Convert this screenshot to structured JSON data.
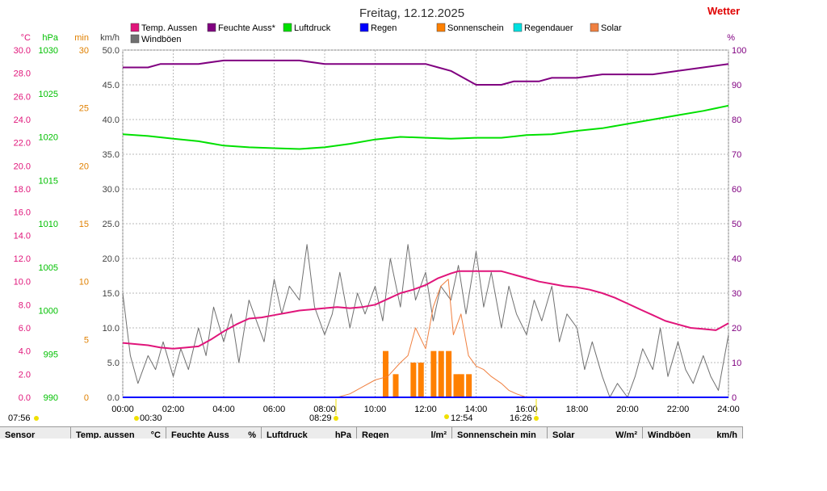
{
  "header": {
    "title": "Freitag, 12.12.2025",
    "brand": "Wetter"
  },
  "legend": [
    {
      "label": "Temp. Aussen",
      "color": "#e0157a"
    },
    {
      "label": "Feuchte Auss*",
      "color": "#800080"
    },
    {
      "label": "Luftdruck",
      "color": "#00e000"
    },
    {
      "label": "Regen",
      "color": "#0000ff"
    },
    {
      "label": "Sonnenschein",
      "color": "#ff8000"
    },
    {
      "label": "Regendauer",
      "color": "#00e0e0"
    },
    {
      "label": "Solar",
      "color": "#f08040"
    },
    {
      "label": "Windböen",
      "color": "#707070"
    }
  ],
  "axes": {
    "temp": {
      "unit": "°C",
      "color": "#e0157a",
      "min": 0,
      "max": 30,
      "ticks": [
        "30.0",
        "28.0",
        "26.0",
        "24.0",
        "22.0",
        "20.0",
        "18.0",
        "16.0",
        "14.0",
        "12.0",
        "10.0",
        "8.0",
        "6.0",
        "4.0",
        "2.0",
        "0.0"
      ]
    },
    "pressure": {
      "unit": "hPa",
      "color": "#00c000",
      "min": 990,
      "max": 1030,
      "ticks": [
        "1030",
        "1025",
        "1020",
        "1015",
        "1010",
        "1005",
        "1000",
        "995",
        "990"
      ]
    },
    "sunshine": {
      "unit": "min",
      "color": "#e08000",
      "min": 0,
      "max": 30,
      "ticks": [
        "30",
        "25",
        "20",
        "15",
        "10",
        "5",
        "0"
      ]
    },
    "wind": {
      "unit": "km/h",
      "color": "#404040",
      "min": 0,
      "max": 50,
      "ticks": [
        "50.0",
        "45.0",
        "40.0",
        "35.0",
        "30.0",
        "25.0",
        "20.0",
        "15.0",
        "10.0",
        "5.0",
        "0.0"
      ]
    },
    "humidity": {
      "unit": "%",
      "color": "#800080",
      "min": 0,
      "max": 100,
      "ticks": [
        "100",
        "90",
        "80",
        "70",
        "60",
        "50",
        "40",
        "30",
        "20",
        "10",
        "0"
      ]
    },
    "time": {
      "ticks": [
        "00:00",
        "02:00",
        "04:00",
        "06:00",
        "08:00",
        "10:00",
        "12:00",
        "14:00",
        "16:00",
        "18:00",
        "20:00",
        "22:00",
        "24:00"
      ]
    }
  },
  "markers": {
    "sunrise_prev": "07:56",
    "moonset": "00:30",
    "sunrise": "08:29",
    "noon": "12:54",
    "sunset": "16:26"
  },
  "footer": [
    {
      "label": "Sensor",
      "unit": ""
    },
    {
      "label": "Temp. aussen",
      "unit": "°C"
    },
    {
      "label": "Feuchte Auss",
      "unit": "%"
    },
    {
      "label": "Luftdruck",
      "unit": "hPa"
    },
    {
      "label": "Regen",
      "unit": "l/m²"
    },
    {
      "label": "Sonnenschein min",
      "unit": ""
    },
    {
      "label": "Solar",
      "unit": "W/m²"
    },
    {
      "label": "Windböen",
      "unit": "km/h"
    }
  ],
  "chart_data": {
    "type": "line",
    "title": "Freitag, 12.12.2025",
    "xlabel": "",
    "xlim": [
      0,
      24
    ],
    "grid": true,
    "legend_position": "top",
    "series": [
      {
        "name": "Temp. Aussen",
        "axis": "temp",
        "unit": "°C",
        "x": [
          0,
          1,
          1.5,
          2,
          2.5,
          3,
          3.5,
          4,
          4.5,
          5,
          5.5,
          6,
          6.5,
          7,
          7.5,
          8,
          8.5,
          9,
          9.5,
          10,
          10.5,
          11,
          11.5,
          12,
          12.5,
          13,
          13.3,
          13.7,
          14,
          14.5,
          15,
          15.5,
          16,
          16.5,
          17,
          17.5,
          18,
          18.5,
          19,
          19.5,
          20,
          20.5,
          21,
          21.5,
          22,
          22.5,
          23,
          23.5,
          24
        ],
        "y": [
          4.7,
          4.5,
          4.3,
          4.2,
          4.3,
          4.4,
          5.0,
          5.7,
          6.3,
          6.8,
          6.9,
          7.1,
          7.3,
          7.5,
          7.6,
          7.7,
          7.8,
          7.7,
          7.8,
          8.0,
          8.5,
          9.0,
          9.3,
          9.7,
          10.3,
          10.7,
          10.9,
          10.9,
          10.9,
          10.9,
          10.9,
          10.6,
          10.3,
          10.0,
          9.8,
          9.6,
          9.5,
          9.3,
          9.0,
          8.6,
          8.1,
          7.6,
          7.1,
          6.6,
          6.3,
          6.0,
          5.9,
          5.8,
          6.4
        ]
      },
      {
        "name": "Feuchte Auss*",
        "axis": "humidity",
        "unit": "%",
        "x": [
          0,
          1,
          1.5,
          2,
          3,
          4,
          5,
          6,
          7,
          8,
          9,
          10,
          11,
          11.5,
          12,
          12.5,
          13,
          13.5,
          14,
          14.5,
          15,
          15.5,
          16,
          16.5,
          17,
          18,
          19,
          20,
          21,
          22,
          23,
          24
        ],
        "y": [
          95,
          95,
          96,
          96,
          96,
          97,
          97,
          97,
          97,
          96,
          96,
          96,
          96,
          96,
          96,
          95,
          94,
          92,
          90,
          90,
          90,
          91,
          91,
          91,
          92,
          92,
          93,
          93,
          93,
          94,
          95,
          96
        ]
      },
      {
        "name": "Luftdruck",
        "axis": "pressure",
        "unit": "hPa",
        "x": [
          0,
          1,
          2,
          3,
          4,
          5,
          6,
          7,
          8,
          9,
          10,
          11,
          12,
          13,
          14,
          15,
          16,
          17,
          18,
          19,
          20,
          21,
          22,
          23,
          24
        ],
        "y": [
          1020.3,
          1020.1,
          1019.8,
          1019.5,
          1019.0,
          1018.8,
          1018.7,
          1018.6,
          1018.8,
          1019.2,
          1019.7,
          1020.0,
          1019.9,
          1019.8,
          1019.9,
          1019.9,
          1020.2,
          1020.3,
          1020.7,
          1021.0,
          1021.5,
          1022.0,
          1022.5,
          1023.0,
          1023.6
        ]
      },
      {
        "name": "Windböen",
        "axis": "wind",
        "unit": "km/h",
        "x": [
          0,
          0.3,
          0.6,
          1,
          1.3,
          1.6,
          2,
          2.3,
          2.6,
          3,
          3.3,
          3.6,
          4,
          4.3,
          4.6,
          5,
          5.3,
          5.6,
          6,
          6.3,
          6.6,
          7,
          7.3,
          7.6,
          8,
          8.3,
          8.6,
          9,
          9.3,
          9.6,
          10,
          10.3,
          10.6,
          11,
          11.3,
          11.6,
          12,
          12.3,
          12.6,
          13,
          13.3,
          13.6,
          14,
          14.3,
          14.6,
          15,
          15.3,
          15.6,
          16,
          16.3,
          16.6,
          17,
          17.3,
          17.6,
          18,
          18.3,
          18.6,
          19,
          19.3,
          19.6,
          20,
          20.3,
          20.6,
          21,
          21.3,
          21.6,
          22,
          22.3,
          22.6,
          23,
          23.3,
          23.6,
          24
        ],
        "y": [
          15,
          6,
          2,
          6,
          4,
          8,
          3,
          7,
          4,
          10,
          6,
          13,
          8,
          12,
          5,
          14,
          11,
          8,
          17,
          12,
          16,
          14,
          22,
          13,
          9,
          12,
          18,
          10,
          15,
          12,
          16,
          11,
          20,
          13,
          22,
          14,
          18,
          11,
          16,
          14,
          19,
          12,
          21,
          13,
          18,
          10,
          16,
          12,
          9,
          14,
          11,
          16,
          8,
          12,
          10,
          4,
          8,
          3,
          0,
          2,
          0,
          3,
          7,
          4,
          10,
          3,
          8,
          4,
          2,
          6,
          3,
          1,
          9
        ]
      },
      {
        "name": "Sonnenschein",
        "axis": "sunshine",
        "unit": "min",
        "type": "bar",
        "x": [
          10.4,
          10.8,
          11.5,
          11.8,
          12.3,
          12.6,
          12.9,
          13.2,
          13.4,
          13.7
        ],
        "y": [
          4,
          2,
          3,
          3,
          4,
          4,
          4,
          2,
          2,
          2
        ]
      },
      {
        "name": "Solar",
        "axis": "humidity",
        "unit": "W/m²",
        "x": [
          8.5,
          9,
          9.5,
          10,
          10.5,
          11,
          11.3,
          11.6,
          12,
          12.3,
          12.6,
          12.9,
          13.1,
          13.4,
          13.7,
          14,
          14.3,
          14.6,
          15,
          15.3,
          15.6,
          16,
          16.5
        ],
        "y": [
          0,
          1,
          3,
          5,
          6,
          10,
          12,
          20,
          14,
          26,
          32,
          34,
          18,
          24,
          12,
          9,
          8,
          6,
          4,
          2,
          1,
          0,
          0
        ]
      },
      {
        "name": "Regen",
        "axis": "humidity",
        "unit": "l/m²",
        "x": [
          0,
          24
        ],
        "y": [
          0,
          0
        ]
      },
      {
        "name": "Regendauer",
        "axis": "humidity",
        "unit": "min",
        "x": [
          0,
          24
        ],
        "y": [
          0,
          0
        ]
      }
    ]
  }
}
